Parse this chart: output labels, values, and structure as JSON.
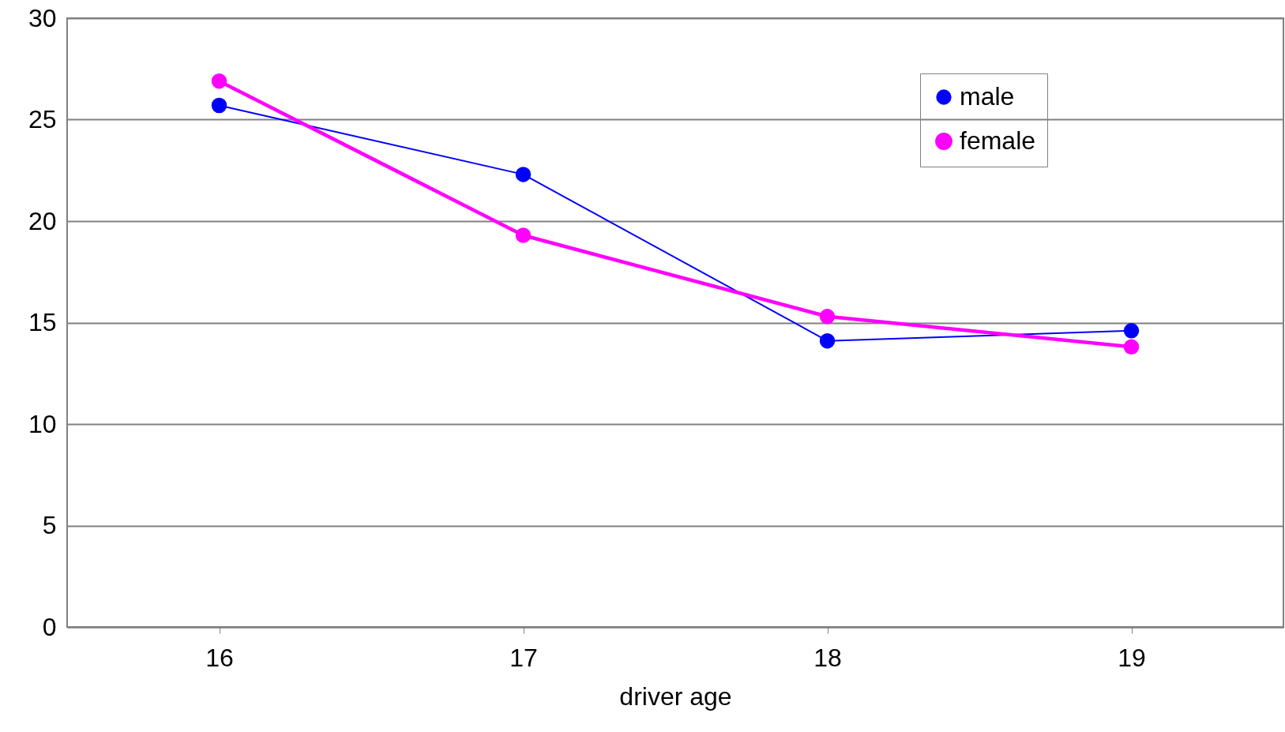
{
  "chart_data": {
    "type": "line",
    "xlabel": "driver age",
    "categories": [
      "16",
      "17",
      "18",
      "19"
    ],
    "series": [
      {
        "name": "male",
        "color": "#0000ff",
        "values": [
          25.7,
          22.3,
          14.1,
          14.6
        ]
      },
      {
        "name": "female",
        "color": "#ff00ff",
        "values": [
          26.9,
          19.3,
          15.3,
          13.8
        ]
      }
    ],
    "ylim": [
      0,
      30
    ],
    "yticks": [
      0,
      5,
      10,
      15,
      20,
      25,
      30
    ],
    "grid": "y",
    "legend": "top right",
    "marker": "circle",
    "line_style": "solid"
  }
}
